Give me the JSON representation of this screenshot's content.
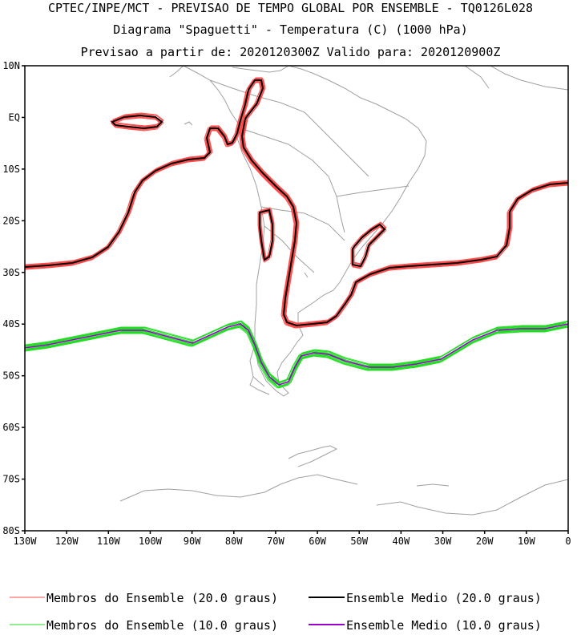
{
  "header": {
    "line1": "CPTEC/INPE/MCT - PREVISAO DE TEMPO GLOBAL POR ENSEMBLE - TQ0126L028",
    "line2": "Diagrama \"Spaguetti\" - Temperatura (C) (1000 hPa)",
    "line3": "Previsao a partir de: 2020120300Z  Valido para: 2020120900Z"
  },
  "axes": {
    "y_ticks": [
      "10N",
      "EQ",
      "10S",
      "20S",
      "30S",
      "40S",
      "50S",
      "60S",
      "70S",
      "80S"
    ],
    "x_ticks": [
      "130W",
      "120W",
      "110W",
      "100W",
      "90W",
      "80W",
      "70W",
      "60W",
      "50W",
      "40W",
      "30W",
      "20W",
      "10W",
      "0"
    ],
    "lon_range": [
      -130,
      0
    ],
    "lat_range": [
      -80,
      10
    ]
  },
  "colors": {
    "member_20": "#ff4b4b",
    "mean_20": "#000000",
    "member_10": "#22dd22",
    "mean_10": "#9900cc",
    "coast": "#a0a0a0"
  },
  "legend": {
    "members_20": "Membros do Ensemble (20.0 graus)",
    "mean_20": "Ensemble Medio (20.0 graus)",
    "members_10": "Membros do Ensemble (10.0 graus)",
    "mean_10": "Ensemble Medio (10.0 graus)"
  }
}
